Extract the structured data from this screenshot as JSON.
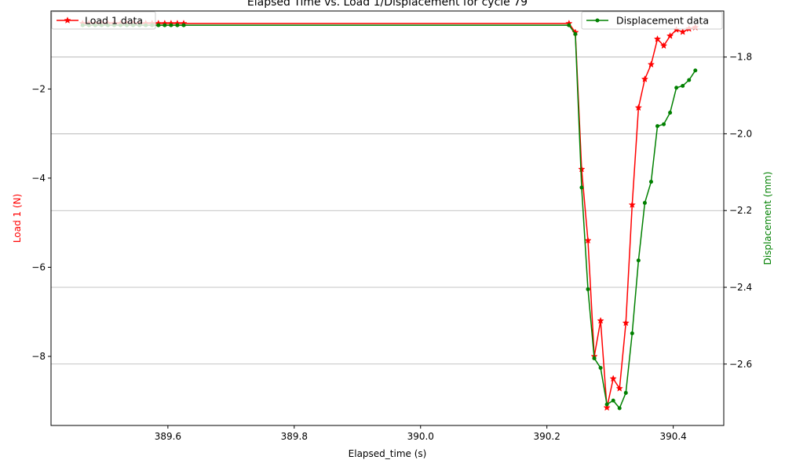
{
  "chart_data": {
    "type": "line",
    "title": "Elapsed Time vs. Load 1/Displacement for cycle 79",
    "xlabel": "Elapsed_time (s)",
    "ylabel_left": "Load 1 (N)",
    "ylabel_right": "Displacement (mm)",
    "xlim": [
      389.415,
      390.48
    ],
    "ylim_left": [
      -9.55,
      -0.25
    ],
    "ylim_right": [
      -2.76,
      -1.68
    ],
    "x_ticks": [
      "389.6",
      "389.8",
      "390.0",
      "390.2",
      "390.4"
    ],
    "x_tick_values": [
      389.6,
      389.8,
      390.0,
      390.2,
      390.4
    ],
    "y_ticks_left": [
      "−2",
      "−4",
      "−6",
      "−8"
    ],
    "y_tick_values_left": [
      -2,
      -4,
      -6,
      -8
    ],
    "y_ticks_right": [
      "−1.8",
      "−2.0",
      "−2.2",
      "−2.4",
      "−2.6"
    ],
    "y_tick_values_right": [
      -1.8,
      -2.0,
      -2.2,
      -2.4,
      -2.6
    ],
    "grid": "right-axis horizontal",
    "series": [
      {
        "name": "Load 1 data",
        "axis": "left",
        "color": "#ff0000",
        "marker": "star",
        "legend_position": "top-left",
        "points": [
          [
            389.465,
            -0.53
          ],
          [
            389.475,
            -0.53
          ],
          [
            389.485,
            -0.53
          ],
          [
            389.495,
            -0.53
          ],
          [
            389.505,
            -0.53
          ],
          [
            389.515,
            -0.53
          ],
          [
            389.525,
            -0.53
          ],
          [
            389.535,
            -0.53
          ],
          [
            389.545,
            -0.53
          ],
          [
            389.555,
            -0.53
          ],
          [
            389.565,
            -0.53
          ],
          [
            389.575,
            -0.53
          ],
          [
            389.585,
            -0.53
          ],
          [
            389.595,
            -0.53
          ],
          [
            389.605,
            -0.53
          ],
          [
            389.615,
            -0.53
          ],
          [
            389.625,
            -0.53
          ],
          [
            390.235,
            -0.53
          ],
          [
            390.245,
            -0.73
          ],
          [
            390.255,
            -3.8
          ],
          [
            390.265,
            -5.4
          ],
          [
            390.275,
            -8.0
          ],
          [
            390.285,
            -7.2
          ],
          [
            390.295,
            -9.15
          ],
          [
            390.305,
            -8.5
          ],
          [
            390.315,
            -8.72
          ],
          [
            390.325,
            -7.25
          ],
          [
            390.335,
            -4.6
          ],
          [
            390.345,
            -2.42
          ],
          [
            390.355,
            -1.78
          ],
          [
            390.365,
            -1.45
          ],
          [
            390.375,
            -0.88
          ],
          [
            390.385,
            -1.03
          ],
          [
            390.395,
            -0.81
          ],
          [
            390.405,
            -0.67
          ],
          [
            390.415,
            -0.72
          ],
          [
            390.425,
            -0.65
          ],
          [
            390.435,
            -0.62
          ]
        ]
      },
      {
        "name": "Displacement data",
        "axis": "right",
        "color": "#008000",
        "marker": "dot",
        "legend_position": "top-right",
        "points": [
          [
            389.465,
            -1.717
          ],
          [
            389.475,
            -1.717
          ],
          [
            389.485,
            -1.717
          ],
          [
            389.495,
            -1.717
          ],
          [
            389.505,
            -1.717
          ],
          [
            389.515,
            -1.717
          ],
          [
            389.525,
            -1.717
          ],
          [
            389.535,
            -1.717
          ],
          [
            389.545,
            -1.717
          ],
          [
            389.555,
            -1.717
          ],
          [
            389.565,
            -1.717
          ],
          [
            389.575,
            -1.717
          ],
          [
            389.585,
            -1.717
          ],
          [
            389.595,
            -1.717
          ],
          [
            389.605,
            -1.717
          ],
          [
            389.615,
            -1.717
          ],
          [
            389.625,
            -1.717
          ],
          [
            390.235,
            -1.717
          ],
          [
            390.245,
            -1.74
          ],
          [
            390.255,
            -2.14
          ],
          [
            390.265,
            -2.405
          ],
          [
            390.275,
            -2.585
          ],
          [
            390.285,
            -2.61
          ],
          [
            390.295,
            -2.705
          ],
          [
            390.305,
            -2.695
          ],
          [
            390.315,
            -2.715
          ],
          [
            390.325,
            -2.675
          ],
          [
            390.335,
            -2.52
          ],
          [
            390.345,
            -2.33
          ],
          [
            390.355,
            -2.18
          ],
          [
            390.365,
            -2.125
          ],
          [
            390.375,
            -1.98
          ],
          [
            390.385,
            -1.975
          ],
          [
            390.395,
            -1.945
          ],
          [
            390.405,
            -1.88
          ],
          [
            390.415,
            -1.875
          ],
          [
            390.425,
            -1.86
          ],
          [
            390.435,
            -1.835
          ]
        ]
      }
    ]
  }
}
